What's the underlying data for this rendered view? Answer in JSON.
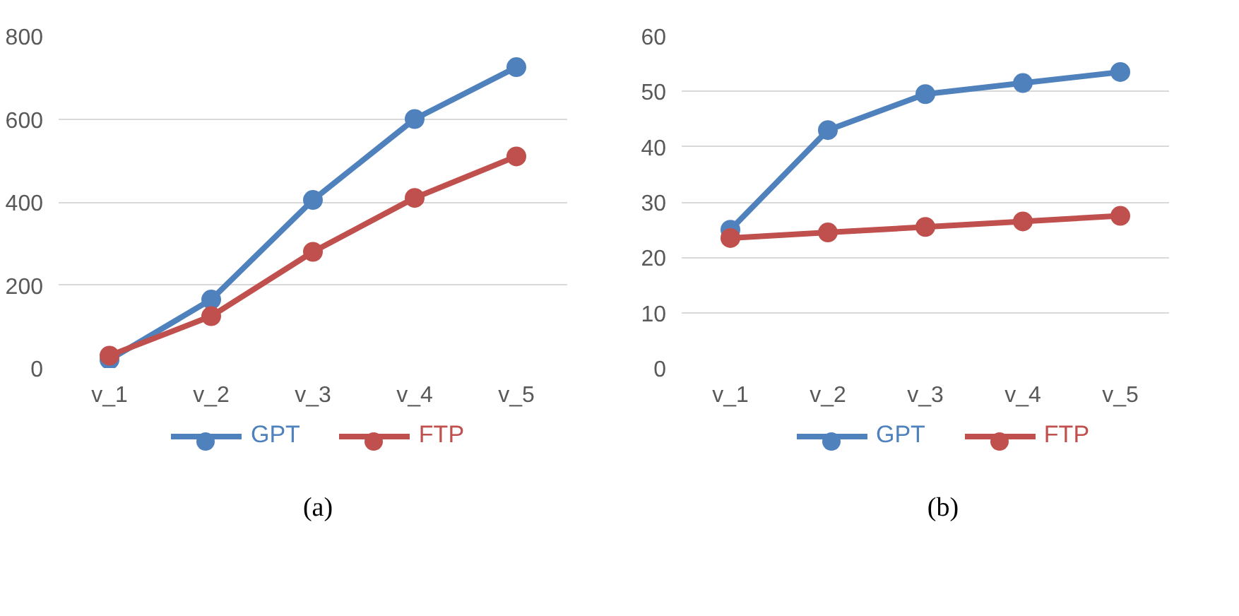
{
  "chart_data": [
    {
      "type": "line",
      "categories": [
        "v_1",
        "v_2",
        "v_3",
        "v_4",
        "v_5"
      ],
      "ylim": [
        0,
        800
      ],
      "yticks": [
        0,
        200,
        400,
        600,
        800
      ],
      "grid": "y",
      "legend": "bottom",
      "marker": "circle",
      "annotations": [
        "(a)"
      ],
      "series": [
        {
          "name": "GPT",
          "color": "#4f81bd",
          "values": [
            20,
            165,
            405,
            600,
            725
          ]
        },
        {
          "name": "FTP",
          "color": "#c0504d",
          "values": [
            30,
            125,
            280,
            410,
            510
          ]
        }
      ]
    },
    {
      "type": "line",
      "categories": [
        "v_1",
        "v_2",
        "v_3",
        "v_4",
        "v_5"
      ],
      "ylim": [
        0,
        60
      ],
      "yticks": [
        0,
        10,
        20,
        30,
        40,
        50,
        60
      ],
      "grid": "y",
      "legend": "bottom",
      "marker": "circle",
      "annotations": [
        "(b)"
      ],
      "series": [
        {
          "name": "GPT",
          "color": "#4f81bd",
          "values": [
            25,
            43,
            49.5,
            51.5,
            53.5
          ]
        },
        {
          "name": "FTP",
          "color": "#c0504d",
          "values": [
            23.5,
            24.5,
            25.5,
            26.5,
            27.5
          ]
        }
      ]
    }
  ]
}
